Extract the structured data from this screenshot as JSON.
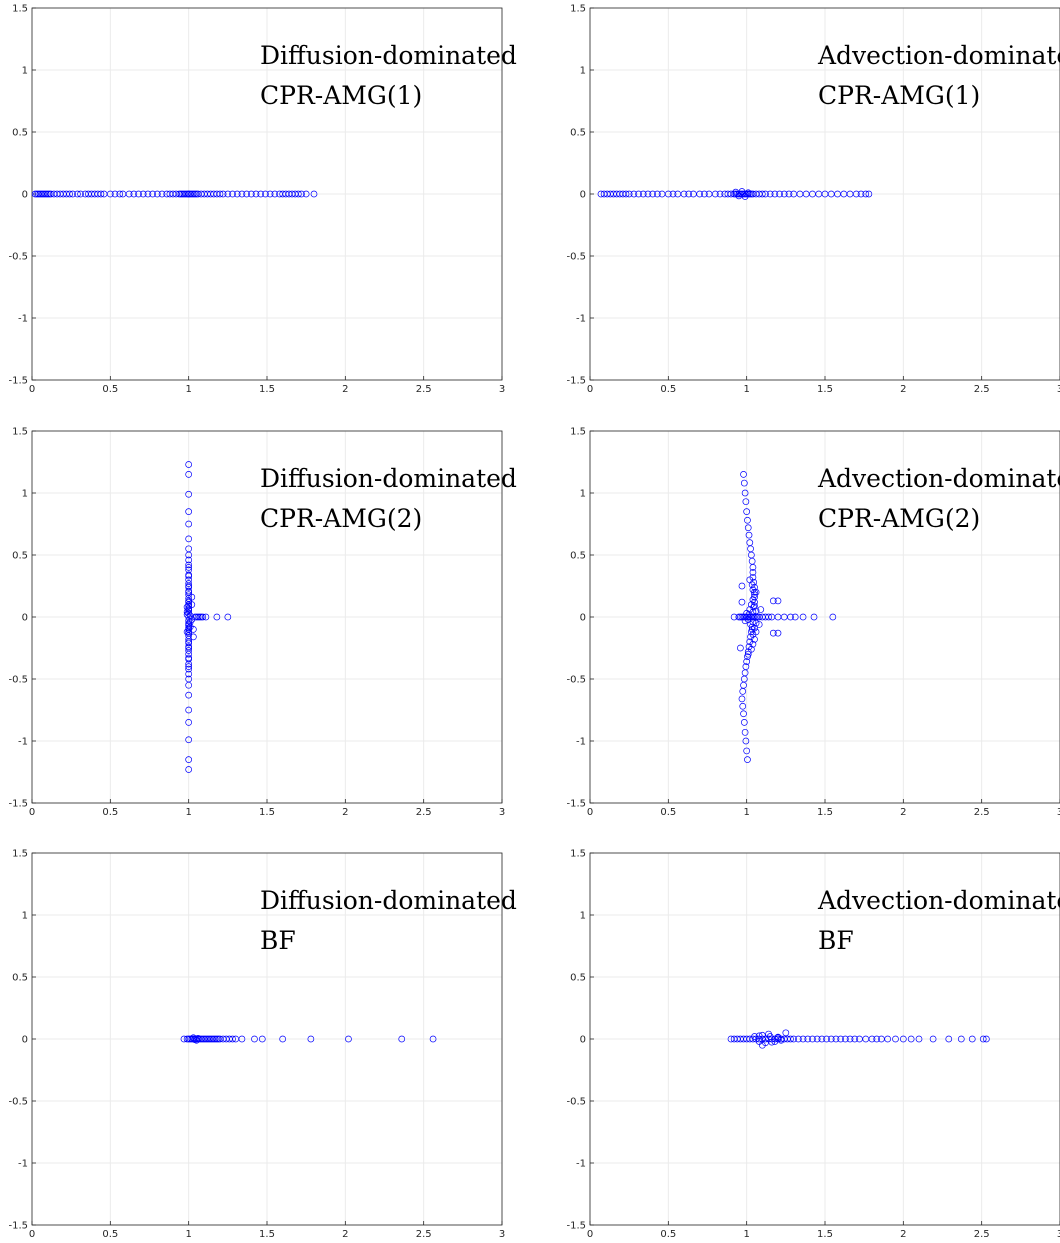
{
  "chart_data": [
    {
      "type": "scatter",
      "title": "Diffusion-dominated",
      "subtitle": "CPR-AMG(1)",
      "xlim": [
        0,
        3
      ],
      "ylim": [
        -1.5,
        1.5
      ],
      "xticks": [
        "0",
        "0.5",
        "1",
        "1.5",
        "2",
        "2.5",
        "3"
      ],
      "yticks": [
        "-1.5",
        "-1",
        "-0.5",
        "0",
        "0.5",
        "1",
        "1.5"
      ],
      "grid": true,
      "marker": "o",
      "color": "#0000ff",
      "series": [
        {
          "x": [
            0.02,
            0.03,
            0.04,
            0.05,
            0.06,
            0.07,
            0.08,
            0.09,
            0.1,
            0.11,
            0.12,
            0.14,
            0.16,
            0.18,
            0.2,
            0.22,
            0.24,
            0.26,
            0.29,
            0.31,
            0.34,
            0.36,
            0.38,
            0.4,
            0.42,
            0.44,
            0.46,
            0.5,
            0.53,
            0.56,
            0.58,
            0.62,
            0.65,
            0.68,
            0.71,
            0.74,
            0.77,
            0.8,
            0.83,
            0.86,
            0.88,
            0.9,
            0.92,
            0.94,
            0.95,
            0.96,
            0.97,
            0.98,
            0.99,
            1.0,
            1.0,
            1.01,
            1.02,
            1.03,
            1.04,
            1.05,
            1.06,
            1.08,
            1.1,
            1.12,
            1.14,
            1.16,
            1.18,
            1.2,
            1.22,
            1.25,
            1.28,
            1.31,
            1.34,
            1.37,
            1.4,
            1.43,
            1.46,
            1.49,
            1.52,
            1.55,
            1.58,
            1.6,
            1.62,
            1.64,
            1.66,
            1.68,
            1.7,
            1.72,
            1.75,
            1.8
          ],
          "y": [
            0,
            0,
            0,
            0,
            0,
            0,
            0,
            0,
            0,
            0,
            0,
            0,
            0,
            0,
            0,
            0,
            0,
            0,
            0,
            0,
            0,
            0,
            0,
            0,
            0,
            0,
            0,
            0,
            0,
            0,
            0,
            0,
            0,
            0,
            0,
            0,
            0,
            0,
            0,
            0,
            0,
            0,
            0,
            0,
            0,
            0,
            0,
            0,
            0,
            0,
            0,
            0,
            0,
            0,
            0,
            0,
            0,
            0,
            0,
            0,
            0,
            0,
            0,
            0,
            0,
            0,
            0,
            0,
            0,
            0,
            0,
            0,
            0,
            0,
            0,
            0,
            0,
            0,
            0,
            0,
            0,
            0,
            0,
            0,
            0,
            0
          ]
        }
      ]
    },
    {
      "type": "scatter",
      "title": "Advection-dominated",
      "subtitle": "CPR-AMG(1)",
      "xlim": [
        0,
        3
      ],
      "ylim": [
        -1.5,
        1.5
      ],
      "xticks": [
        "0",
        "0.5",
        "1",
        "1.5",
        "2",
        "2.5",
        "3"
      ],
      "yticks": [
        "-1.5",
        "-1",
        "-0.5",
        "0",
        "0.5",
        "1",
        "1.5"
      ],
      "grid": true,
      "marker": "o",
      "color": "#0000ff",
      "series": [
        {
          "x": [
            0.07,
            0.09,
            0.11,
            0.13,
            0.15,
            0.17,
            0.19,
            0.21,
            0.23,
            0.25,
            0.28,
            0.31,
            0.34,
            0.37,
            0.4,
            0.43,
            0.46,
            0.5,
            0.53,
            0.56,
            0.6,
            0.63,
            0.66,
            0.7,
            0.73,
            0.76,
            0.8,
            0.83,
            0.86,
            0.88,
            0.9,
            0.92,
            0.93,
            0.94,
            0.95,
            0.96,
            0.97,
            0.98,
            0.99,
            1.0,
            1.01,
            1.02,
            1.03,
            1.04,
            1.06,
            1.08,
            1.1,
            1.12,
            1.15,
            1.18,
            1.21,
            1.24,
            1.27,
            1.3,
            1.34,
            1.38,
            1.42,
            1.46,
            1.5,
            1.54,
            1.58,
            1.62,
            1.66,
            1.7,
            1.73,
            1.76,
            1.78,
            0.93,
            0.95,
            0.97,
            0.99,
            1.01
          ],
          "y": [
            0,
            0,
            0,
            0,
            0,
            0,
            0,
            0,
            0,
            0,
            0,
            0,
            0,
            0,
            0,
            0,
            0,
            0,
            0,
            0,
            0,
            0,
            0,
            0,
            0,
            0,
            0,
            0,
            0,
            0,
            0,
            0,
            0,
            0,
            0,
            0,
            0,
            0,
            0,
            0,
            0,
            0,
            0,
            0,
            0,
            0,
            0,
            0,
            0,
            0,
            0,
            0,
            0,
            0,
            0,
            0,
            0,
            0,
            0,
            0,
            0,
            0,
            0,
            0,
            0,
            0,
            0,
            0.015,
            -0.015,
            0.02,
            -0.02,
            0.01
          ]
        }
      ]
    },
    {
      "type": "scatter",
      "title": "Diffusion-dominated",
      "subtitle": "CPR-AMG(2)",
      "xlim": [
        0,
        3
      ],
      "ylim": [
        -1.5,
        1.5
      ],
      "xticks": [
        "0",
        "0.5",
        "1",
        "1.5",
        "2",
        "2.5",
        "3"
      ],
      "yticks": [
        "-1.5",
        "-1",
        "-0.5",
        "0",
        "0.5",
        "1",
        "1.5"
      ],
      "grid": true,
      "marker": "o",
      "color": "#0000ff",
      "series": [
        {
          "x": [
            1.0,
            1.0,
            1.0,
            1.0,
            1.0,
            1.0,
            1.0,
            1.0,
            1.0,
            1.0,
            1.0,
            1.0,
            1.0,
            1.0,
            1.0,
            1.0,
            1.0,
            1.0,
            1.0,
            1.0,
            1.0,
            1.0,
            1.0,
            1.0,
            1.0,
            1.0,
            1.0,
            1.0,
            1.0,
            1.0,
            1.0,
            1.0,
            1.0,
            1.0,
            1.0,
            1.0,
            1.0,
            1.0,
            1.0,
            1.0,
            1.0,
            1.0,
            1.0,
            1.0,
            1.0,
            1.0,
            1.0,
            1.0,
            1.0,
            1.0,
            1.0,
            1.0,
            1.0,
            1.0,
            1.0,
            1.0,
            1.0,
            1.0,
            1.0,
            1.0,
            1.0,
            0.99,
            1.01,
            0.99,
            1.01,
            1.02,
            1.03,
            1.02,
            1.03,
            1.04,
            1.05,
            1.06,
            1.07,
            1.08,
            1.09,
            1.11,
            1.18,
            1.25,
            0.99,
            1.01,
            1.02,
            0.99
          ],
          "y": [
            1.23,
            1.15,
            0.99,
            0.85,
            0.75,
            0.63,
            0.55,
            0.5,
            0.46,
            0.42,
            0.38,
            0.34,
            0.3,
            0.27,
            0.24,
            0.21,
            0.18,
            0.15,
            0.12,
            0.09,
            0.06,
            0.03,
            0.0,
            -0.03,
            -0.06,
            -0.09,
            -0.12,
            -0.15,
            -0.18,
            -0.21,
            -0.24,
            -0.27,
            -0.3,
            -0.34,
            -0.38,
            -0.42,
            -0.46,
            -0.5,
            -0.55,
            -0.63,
            -0.75,
            -0.85,
            -0.99,
            -1.15,
            -1.23,
            0.2,
            0.1,
            0.05,
            -0.05,
            -0.1,
            -0.2,
            0.25,
            -0.25,
            0.4,
            -0.4,
            0.13,
            -0.13,
            0.07,
            -0.07,
            0.33,
            -0.33,
            0.04,
            -0.04,
            0.08,
            -0.08,
            0.1,
            -0.1,
            0.16,
            -0.16,
            0.0,
            0.0,
            0.0,
            0.0,
            0.0,
            0.0,
            0.0,
            0.0,
            0.0,
            0.02,
            0.01,
            -0.02,
            -0.12
          ]
        }
      ]
    },
    {
      "type": "scatter",
      "title": "Advection-dominated",
      "subtitle": "CPR-AMG(2)",
      "xlim": [
        0,
        3
      ],
      "ylim": [
        -1.5,
        1.5
      ],
      "xticks": [
        "0",
        "0.5",
        "1",
        "1.5",
        "2",
        "2.5",
        "3"
      ],
      "yticks": [
        "-1.5",
        "-1",
        "-0.5",
        "0",
        "0.5",
        "1",
        "1.5"
      ],
      "grid": true,
      "marker": "o",
      "color": "#0000ff",
      "series": [
        {
          "x": [
            0.98,
            0.985,
            0.99,
            0.995,
            1.0,
            1.005,
            1.01,
            1.015,
            1.02,
            1.025,
            1.03,
            1.035,
            1.04,
            1.04,
            1.04,
            1.045,
            1.05,
            1.05,
            1.05,
            1.05,
            1.045,
            1.04,
            1.04,
            1.04,
            1.035,
            1.03,
            1.025,
            1.02,
            1.015,
            1.01,
            1.005,
            1.0,
            0.995,
            0.99,
            0.985,
            0.98,
            0.975,
            0.97,
            0.975,
            0.98,
            0.985,
            0.99,
            0.995,
            1.0,
            1.005,
            1.01,
            1.015,
            1.02,
            1.025,
            1.03,
            1.035,
            1.04,
            1.04,
            1.05,
            1.05,
            1.06,
            1.06,
            1.05,
            1.05,
            1.04,
            1.04,
            1.035,
            1.03,
            1.02,
            1.01,
            1.0,
            0.99,
            0.98,
            0.97,
            0.96,
            0.99,
            1.0,
            1.01,
            1.02,
            1.03,
            1.04,
            1.05,
            1.06,
            1.07,
            1.08,
            1.1,
            1.12,
            1.14,
            1.16,
            1.2,
            1.24,
            1.28,
            1.31,
            1.36,
            1.43,
            1.55,
            0.92,
            0.95,
            1.17,
            1.2,
            1.17,
            1.2,
            0.97,
            0.96,
            1.09,
            1.08,
            0.97,
            1.06,
            1.06
          ],
          "y": [
            1.15,
            1.08,
            1.0,
            0.93,
            0.85,
            0.78,
            0.72,
            0.66,
            0.6,
            0.55,
            0.5,
            0.45,
            0.4,
            0.36,
            0.32,
            0.28,
            0.24,
            0.2,
            0.16,
            0.12,
            0.08,
            0.04,
            0.0,
            -0.04,
            -0.08,
            -0.12,
            -0.16,
            -0.2,
            -0.24,
            -0.28,
            -0.32,
            -0.36,
            -0.4,
            -0.45,
            -0.5,
            -0.55,
            -0.6,
            -0.66,
            -0.72,
            -0.78,
            -0.85,
            -0.93,
            -1.0,
            -1.08,
            -1.15,
            -0.02,
            0.02,
            0.06,
            -0.06,
            0.1,
            -0.1,
            0.14,
            -0.14,
            0.18,
            -0.18,
            0.05,
            -0.05,
            0.09,
            -0.09,
            0.22,
            -0.22,
            0.26,
            -0.26,
            0.3,
            -0.3,
            0.03,
            -0.03,
            0.0,
            0.0,
            0.0,
            0.0,
            0.0,
            0.0,
            0.0,
            0.0,
            0.0,
            0.0,
            0.0,
            0.0,
            0.0,
            0.0,
            0.0,
            0.0,
            0.0,
            0.0,
            0.0,
            0.0,
            0.0,
            0.0,
            0.0,
            0.0,
            0.0,
            0.0,
            0.13,
            0.13,
            -0.13,
            -0.13,
            0.25,
            -0.25,
            0.06,
            -0.06,
            0.12,
            -0.12,
            0.2
          ]
        }
      ]
    },
    {
      "type": "scatter",
      "title": "Diffusion-dominated",
      "subtitle": "BF",
      "xlim": [
        0,
        3
      ],
      "ylim": [
        -1.5,
        1.5
      ],
      "xticks": [
        "0",
        "0.5",
        "1",
        "1.5",
        "2",
        "2.5",
        "3"
      ],
      "yticks": [
        "-1.5",
        "-1",
        "-0.5",
        "0",
        "0.5",
        "1",
        "1.5"
      ],
      "grid": true,
      "marker": "o",
      "color": "#0000ff",
      "series": [
        {
          "x": [
            0.97,
            0.99,
            1.0,
            1.01,
            1.02,
            1.03,
            1.04,
            1.05,
            1.06,
            1.07,
            1.08,
            1.09,
            1.1,
            1.11,
            1.12,
            1.13,
            1.14,
            1.15,
            1.16,
            1.17,
            1.18,
            1.19,
            1.2,
            1.22,
            1.24,
            1.26,
            1.28,
            1.3,
            1.34,
            1.42,
            1.47,
            1.6,
            1.78,
            2.02,
            2.36,
            2.56,
            1.03,
            1.05,
            1.04,
            1.06
          ],
          "y": [
            0,
            0,
            0,
            0,
            0,
            0,
            0,
            0,
            0,
            0,
            0,
            0,
            0,
            0,
            0,
            0,
            0,
            0,
            0,
            0,
            0,
            0,
            0,
            0,
            0,
            0,
            0,
            0,
            0,
            0,
            0,
            0,
            0,
            0,
            0,
            0,
            0.01,
            -0.01,
            -0.005,
            0.005
          ]
        }
      ]
    },
    {
      "type": "scatter",
      "title": "Advection-dominated",
      "subtitle": "BF",
      "xlim": [
        0,
        3
      ],
      "ylim": [
        -1.5,
        1.5
      ],
      "xticks": [
        "0",
        "0.5",
        "1",
        "1.5",
        "2",
        "2.5",
        "3"
      ],
      "yticks": [
        "-1.5",
        "-1",
        "-0.5",
        "0",
        "0.5",
        "1",
        "1.5"
      ],
      "grid": true,
      "marker": "o",
      "color": "#0000ff",
      "series": [
        {
          "x": [
            0.9,
            0.92,
            0.94,
            0.96,
            0.98,
            1.0,
            1.02,
            1.04,
            1.06,
            1.08,
            1.1,
            1.12,
            1.14,
            1.16,
            1.18,
            1.2,
            1.22,
            1.24,
            1.26,
            1.28,
            1.3,
            1.33,
            1.36,
            1.39,
            1.42,
            1.45,
            1.48,
            1.51,
            1.54,
            1.57,
            1.6,
            1.63,
            1.66,
            1.69,
            1.72,
            1.76,
            1.8,
            1.83,
            1.86,
            1.9,
            1.95,
            2.0,
            2.05,
            2.1,
            2.19,
            2.29,
            2.37,
            2.44,
            2.51,
            2.53,
            1.05,
            1.08,
            1.1,
            1.12,
            1.15,
            1.18,
            1.2,
            1.22,
            1.25,
            1.1,
            1.14,
            1.08,
            1.16,
            1.2
          ],
          "y": [
            0,
            0,
            0,
            0,
            0,
            0,
            0,
            0,
            0,
            0,
            0,
            0,
            0,
            0,
            0,
            0,
            0,
            0,
            0,
            0,
            0,
            0,
            0,
            0,
            0,
            0,
            0,
            0,
            0,
            0,
            0,
            0,
            0,
            0,
            0,
            0,
            0,
            0,
            0,
            0,
            0,
            0,
            0,
            0,
            0,
            0,
            0,
            0,
            0,
            0,
            0.02,
            -0.02,
            0.03,
            -0.03,
            0.02,
            -0.02,
            0.01,
            -0.01,
            0.05,
            -0.05,
            0.04,
            0.025,
            -0.025,
            0.015
          ]
        }
      ]
    }
  ]
}
